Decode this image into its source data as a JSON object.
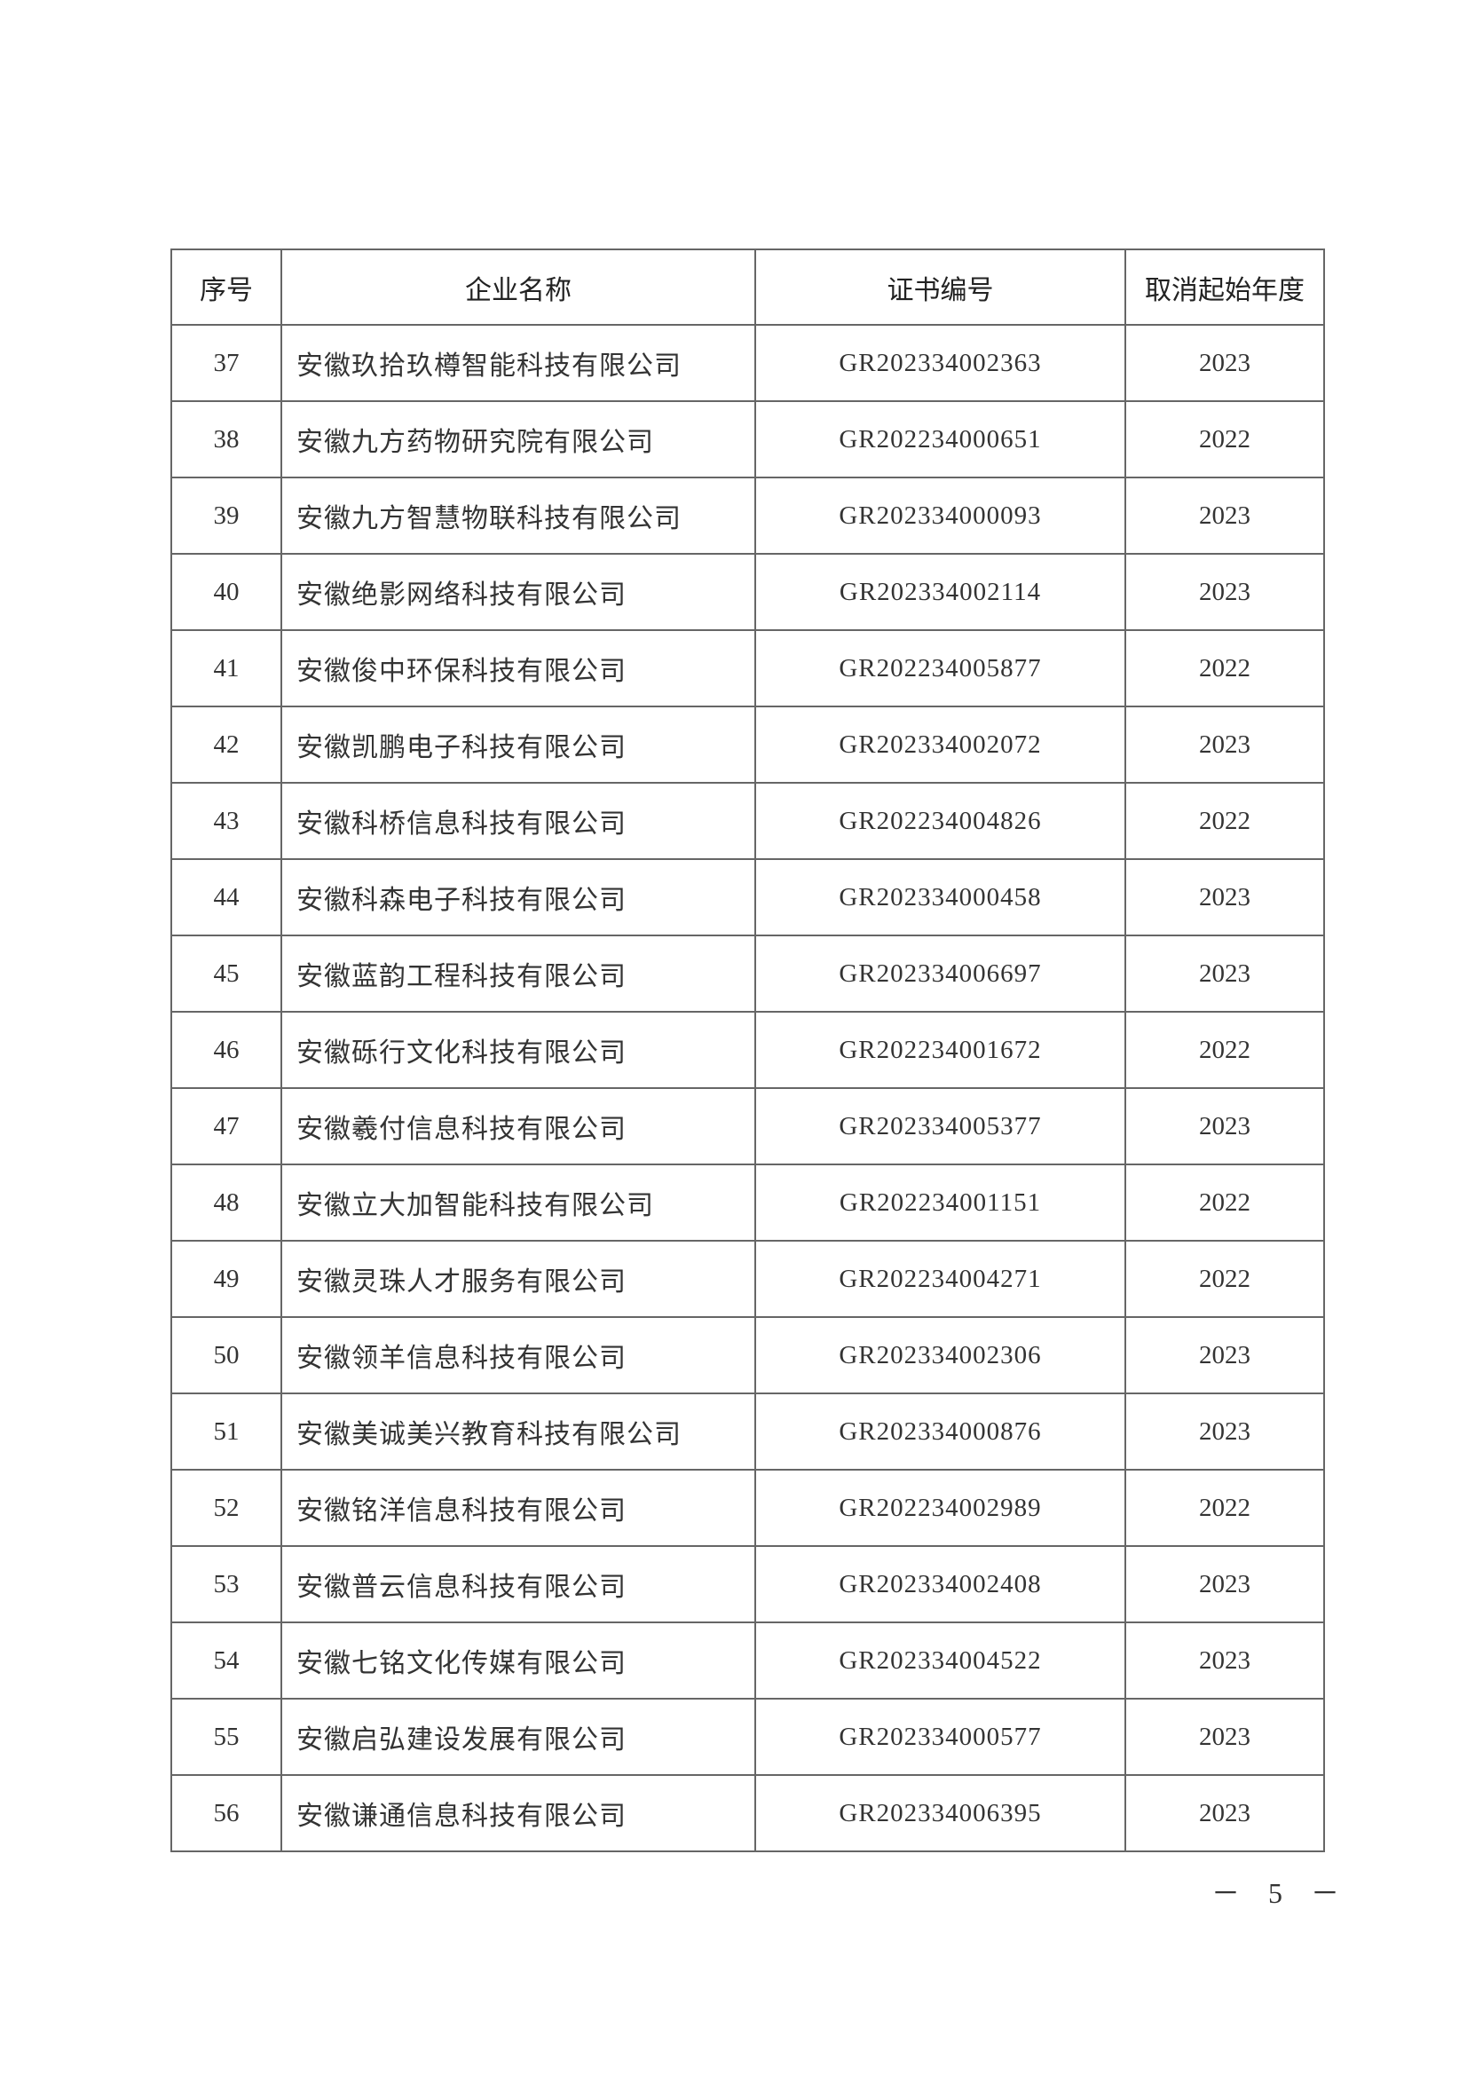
{
  "table": {
    "headers": [
      "序号",
      "企业名称",
      "证书编号",
      "取消起始年度"
    ],
    "rows": [
      {
        "no": "37",
        "name": "安徽玖拾玖樽智能科技有限公司",
        "cert": "GR202334002363",
        "year": "2023"
      },
      {
        "no": "38",
        "name": "安徽九方药物研究院有限公司",
        "cert": "GR202234000651",
        "year": "2022"
      },
      {
        "no": "39",
        "name": "安徽九方智慧物联科技有限公司",
        "cert": "GR202334000093",
        "year": "2023"
      },
      {
        "no": "40",
        "name": "安徽绝影网络科技有限公司",
        "cert": "GR202334002114",
        "year": "2023"
      },
      {
        "no": "41",
        "name": "安徽俊中环保科技有限公司",
        "cert": "GR202234005877",
        "year": "2022"
      },
      {
        "no": "42",
        "name": "安徽凯鹏电子科技有限公司",
        "cert": "GR202334002072",
        "year": "2023"
      },
      {
        "no": "43",
        "name": "安徽科桥信息科技有限公司",
        "cert": "GR202234004826",
        "year": "2022"
      },
      {
        "no": "44",
        "name": "安徽科森电子科技有限公司",
        "cert": "GR202334000458",
        "year": "2023"
      },
      {
        "no": "45",
        "name": "安徽蓝韵工程科技有限公司",
        "cert": "GR202334006697",
        "year": "2023"
      },
      {
        "no": "46",
        "name": "安徽砾行文化科技有限公司",
        "cert": "GR202234001672",
        "year": "2022"
      },
      {
        "no": "47",
        "name": "安徽羲付信息科技有限公司",
        "cert": "GR202334005377",
        "year": "2023"
      },
      {
        "no": "48",
        "name": "安徽立大加智能科技有限公司",
        "cert": "GR202234001151",
        "year": "2022"
      },
      {
        "no": "49",
        "name": "安徽灵珠人才服务有限公司",
        "cert": "GR202234004271",
        "year": "2022"
      },
      {
        "no": "50",
        "name": "安徽领羊信息科技有限公司",
        "cert": "GR202334002306",
        "year": "2023"
      },
      {
        "no": "51",
        "name": "安徽美诚美兴教育科技有限公司",
        "cert": "GR202334000876",
        "year": "2023"
      },
      {
        "no": "52",
        "name": "安徽铭洋信息科技有限公司",
        "cert": "GR202234002989",
        "year": "2022"
      },
      {
        "no": "53",
        "name": "安徽普云信息科技有限公司",
        "cert": "GR202334002408",
        "year": "2023"
      },
      {
        "no": "54",
        "name": "安徽七铭文化传媒有限公司",
        "cert": "GR202334004522",
        "year": "2023"
      },
      {
        "no": "55",
        "name": "安徽启弘建设发展有限公司",
        "cert": "GR202334000577",
        "year": "2023"
      },
      {
        "no": "56",
        "name": "安徽谦通信息科技有限公司",
        "cert": "GR202334006395",
        "year": "2023"
      }
    ]
  },
  "footer": {
    "page_number": "－ 5 －"
  }
}
